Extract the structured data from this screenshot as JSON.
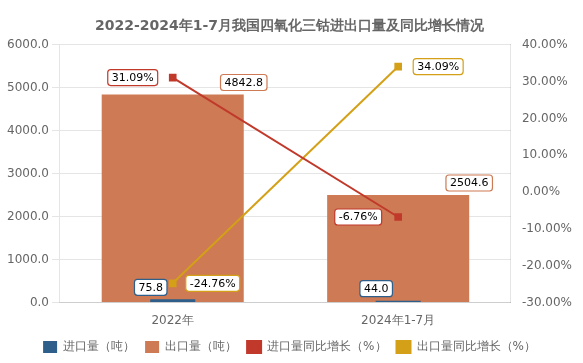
{
  "chart_data": {
    "type": "bar",
    "title": "2022-2024年1-7月我国四氧化三钴进出口量及同比增长情况",
    "categories": [
      "2022年",
      "2024年1-7月"
    ],
    "series": [
      {
        "name": "进口量（吨）",
        "color": "#2e5f8a",
        "values": [
          75.8,
          44.0
        ],
        "value_labels": [
          "75.8",
          "44.0"
        ]
      },
      {
        "name": "出口量（吨）",
        "color": "#cd7a55",
        "values": [
          4842.8,
          2504.6
        ],
        "value_labels": [
          "4842.8",
          "2504.6"
        ]
      },
      {
        "name": "进口量同比增长（%）",
        "type": "line",
        "color": "#c0392b",
        "marker": "square",
        "axis": "y2",
        "values": [
          31.09,
          -6.76
        ],
        "value_labels": [
          "31.09%",
          "-6.76%"
        ]
      },
      {
        "name": "出口量同比增长（%）",
        "type": "line",
        "color": "#d4a017",
        "marker": "square",
        "axis": "y2",
        "values": [
          -24.76,
          34.09
        ],
        "value_labels": [
          "-24.76%",
          "34.09%"
        ]
      }
    ],
    "ylim": [
      0,
      6000
    ],
    "yticks": [
      {
        "value": 0,
        "label": "0.0"
      },
      {
        "value": 1000,
        "label": "1000.0"
      },
      {
        "value": 2000,
        "label": "2000.0"
      },
      {
        "value": 3000,
        "label": "3000.0"
      },
      {
        "value": 4000,
        "label": "4000.0"
      },
      {
        "value": 5000,
        "label": "5000.0"
      },
      {
        "value": 6000,
        "label": "6000.0"
      }
    ],
    "y2lim": [
      -30,
      40
    ],
    "y2ticks": [
      {
        "value": -30,
        "label": "-30.00%"
      },
      {
        "value": -20,
        "label": "-20.00%"
      },
      {
        "value": -10,
        "label": "-10.00%"
      },
      {
        "value": 0,
        "label": "0.00%"
      },
      {
        "value": 10,
        "label": "10.00%"
      },
      {
        "value": 20,
        "label": "20.00%"
      },
      {
        "value": 30,
        "label": "30.00%"
      },
      {
        "value": 40,
        "label": "40.00%"
      }
    ],
    "grid": true,
    "data_labels": true,
    "legend": "bottom"
  }
}
